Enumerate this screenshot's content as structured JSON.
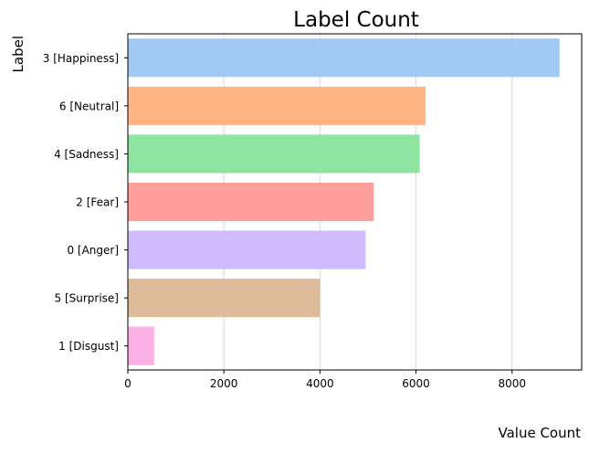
{
  "chart_data": {
    "type": "bar",
    "orientation": "horizontal",
    "title": "Label Count",
    "xlabel": "Value Count",
    "ylabel": "Label",
    "categories": [
      "3 [Happiness]",
      "6 [Neutral]",
      "4 [Sadness]",
      "2 [Fear]",
      "0 [Anger]",
      "5 [Surprise]",
      "1 [Disgust]"
    ],
    "values": [
      8989,
      6198,
      6077,
      5121,
      4953,
      4002,
      547
    ],
    "colors": [
      "#a1c9f4",
      "#ffb482",
      "#8de5a1",
      "#ff9f9b",
      "#d0bbff",
      "#debb9b",
      "#fab0e4"
    ],
    "xlim": [
      0,
      9450
    ],
    "xticks": [
      0,
      2000,
      4000,
      6000,
      8000
    ],
    "grid": "vertical"
  }
}
